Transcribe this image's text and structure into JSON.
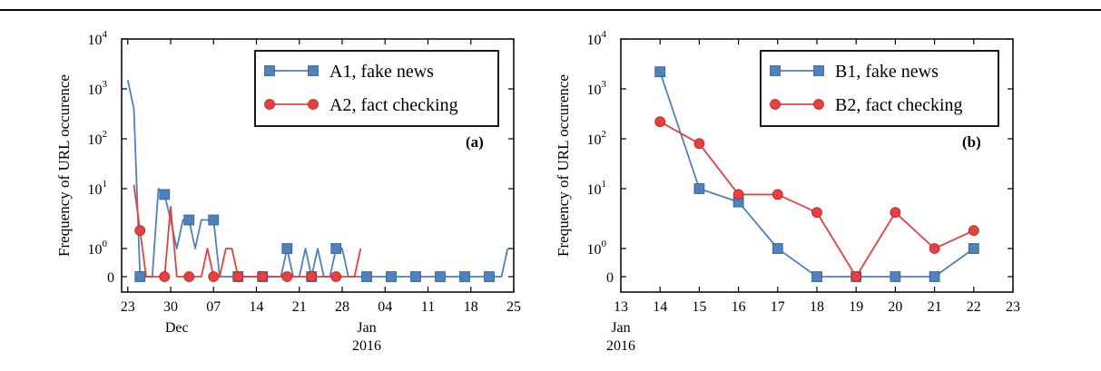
{
  "chart_data": [
    {
      "type": "line",
      "panel_label": "(a)",
      "ylabel": "Frequency of URL occurence",
      "y_scale": "symlog",
      "y_ticks": [
        {
          "value": 0,
          "label": "0",
          "sup": ""
        },
        {
          "value": 1,
          "label": "10",
          "sup": "0"
        },
        {
          "value": 10,
          "label": "10",
          "sup": "1"
        },
        {
          "value": 100,
          "label": "10",
          "sup": "2"
        },
        {
          "value": 1000,
          "label": "10",
          "sup": "3"
        },
        {
          "value": 10000,
          "label": "10",
          "sup": "4"
        }
      ],
      "xlim": [
        "2015-11-22",
        "2016-01-25"
      ],
      "x_ticks": [
        {
          "date": "2015-11-23",
          "label": "23"
        },
        {
          "date": "2015-11-30",
          "label": "30"
        },
        {
          "date": "2015-12-07",
          "label": "07"
        },
        {
          "date": "2015-12-14",
          "label": "14"
        },
        {
          "date": "2015-12-21",
          "label": "21"
        },
        {
          "date": "2015-12-28",
          "label": "28"
        },
        {
          "date": "2016-01-04",
          "label": "04"
        },
        {
          "date": "2016-01-11",
          "label": "11"
        },
        {
          "date": "2016-01-18",
          "label": "18"
        },
        {
          "date": "2016-01-25",
          "label": "25"
        }
      ],
      "x_sublabels": [
        {
          "date": "2015-12-01",
          "lines": [
            "Dec"
          ]
        },
        {
          "date": "2016-01-01",
          "lines": [
            "Jan",
            "2016"
          ]
        }
      ],
      "legend_position": "top-right",
      "series": [
        {
          "name": "A1, fake news",
          "color": "#4f81bd",
          "marker": "square",
          "x": [
            "2015-11-23",
            "2015-11-24",
            "2015-11-25",
            "2015-11-26",
            "2015-11-27",
            "2015-11-28",
            "2015-11-29",
            "2015-11-30",
            "2015-12-01",
            "2015-12-02",
            "2015-12-03",
            "2015-12-04",
            "2015-12-05",
            "2015-12-06",
            "2015-12-07",
            "2015-12-08",
            "2015-12-09",
            "2015-12-10",
            "2015-12-11",
            "2015-12-12",
            "2015-12-13",
            "2015-12-14",
            "2015-12-15",
            "2015-12-16",
            "2015-12-17",
            "2015-12-18",
            "2015-12-19",
            "2015-12-20",
            "2015-12-21",
            "2015-12-22",
            "2015-12-23",
            "2015-12-24",
            "2015-12-25",
            "2015-12-26",
            "2015-12-27",
            "2015-12-28",
            "2015-12-29",
            "2015-12-30",
            "2015-12-31",
            "2016-01-01",
            "2016-01-02",
            "2016-01-03",
            "2016-01-04",
            "2016-01-05",
            "2016-01-06",
            "2016-01-07",
            "2016-01-08",
            "2016-01-09",
            "2016-01-10",
            "2016-01-11",
            "2016-01-12",
            "2016-01-13",
            "2016-01-14",
            "2016-01-15",
            "2016-01-16",
            "2016-01-17",
            "2016-01-18",
            "2016-01-19",
            "2016-01-20",
            "2016-01-21",
            "2016-01-22",
            "2016-01-23",
            "2016-01-24"
          ],
          "values": [
            1500,
            400,
            0,
            0,
            0,
            10,
            8,
            3,
            1,
            3,
            3,
            1,
            3,
            3,
            3,
            0,
            0,
            0,
            0,
            0,
            0,
            0,
            0,
            0,
            0,
            0,
            1,
            0,
            0,
            1,
            0,
            1,
            0,
            0,
            1,
            1,
            0,
            0,
            0,
            0,
            0,
            0,
            0,
            0,
            0,
            0,
            0,
            0,
            0,
            0,
            0,
            0,
            0,
            0,
            0,
            0,
            0,
            0,
            0,
            0,
            0,
            0,
            1
          ],
          "marker_dates": [
            "2015-11-25",
            "2015-11-29",
            "2015-12-03",
            "2015-12-07",
            "2015-12-11",
            "2015-12-15",
            "2015-12-19",
            "2015-12-23",
            "2015-12-27",
            "2016-01-01",
            "2016-01-05",
            "2016-01-09",
            "2016-01-13",
            "2016-01-17",
            "2016-01-21"
          ]
        },
        {
          "name": "A2, fact checking",
          "color": "#e84040",
          "marker": "circle",
          "x": [
            "2015-11-24",
            "2015-11-25",
            "2015-11-26",
            "2015-11-27",
            "2015-11-28",
            "2015-11-29",
            "2015-11-30",
            "2015-12-01",
            "2015-12-02",
            "2015-12-03",
            "2015-12-04",
            "2015-12-05",
            "2015-12-06",
            "2015-12-07",
            "2015-12-08",
            "2015-12-09",
            "2015-12-10",
            "2015-12-11",
            "2015-12-12",
            "2015-12-13",
            "2015-12-14",
            "2015-12-15",
            "2015-12-16",
            "2015-12-17",
            "2015-12-18",
            "2015-12-19",
            "2015-12-20",
            "2015-12-21",
            "2015-12-22",
            "2015-12-23",
            "2015-12-24",
            "2015-12-25",
            "2015-12-26",
            "2015-12-27",
            "2015-12-28",
            "2015-12-29",
            "2015-12-30",
            "2015-12-31"
          ],
          "values": [
            12,
            2,
            0,
            0,
            0,
            0,
            5,
            0,
            0,
            0,
            0,
            0,
            1,
            0,
            0,
            1,
            1,
            0,
            0,
            0,
            0,
            0,
            0,
            0,
            0,
            0,
            0,
            0,
            0,
            0,
            0,
            0,
            0,
            0,
            0,
            0,
            0,
            1
          ],
          "marker_dates": [
            "2015-11-25",
            "2015-11-29",
            "2015-12-03",
            "2015-12-07",
            "2015-12-11",
            "2015-12-15",
            "2015-12-19",
            "2015-12-23",
            "2015-12-27"
          ]
        }
      ]
    },
    {
      "type": "line",
      "panel_label": "(b)",
      "ylabel": "Frequency of URL occurence",
      "y_scale": "symlog",
      "y_ticks": [
        {
          "value": 0,
          "label": "0",
          "sup": ""
        },
        {
          "value": 1,
          "label": "10",
          "sup": "0"
        },
        {
          "value": 10,
          "label": "10",
          "sup": "1"
        },
        {
          "value": 100,
          "label": "10",
          "sup": "2"
        },
        {
          "value": 1000,
          "label": "10",
          "sup": "3"
        },
        {
          "value": 10000,
          "label": "10",
          "sup": "4"
        }
      ],
      "xlim": [
        "2016-01-13",
        "2016-01-23"
      ],
      "x_ticks": [
        {
          "date": "2016-01-13",
          "label": "13"
        },
        {
          "date": "2016-01-14",
          "label": "14"
        },
        {
          "date": "2016-01-15",
          "label": "15"
        },
        {
          "date": "2016-01-16",
          "label": "16"
        },
        {
          "date": "2016-01-17",
          "label": "17"
        },
        {
          "date": "2016-01-18",
          "label": "18"
        },
        {
          "date": "2016-01-19",
          "label": "19"
        },
        {
          "date": "2016-01-20",
          "label": "20"
        },
        {
          "date": "2016-01-21",
          "label": "21"
        },
        {
          "date": "2016-01-22",
          "label": "22"
        },
        {
          "date": "2016-01-23",
          "label": "23"
        }
      ],
      "x_sublabels": [
        {
          "date": "2016-01-13",
          "lines": [
            "Jan",
            "2016"
          ]
        }
      ],
      "legend_position": "top-right",
      "series": [
        {
          "name": "B1, fake news",
          "color": "#4f81bd",
          "marker": "square",
          "x": [
            "2016-01-14",
            "2016-01-15",
            "2016-01-16",
            "2016-01-17",
            "2016-01-18",
            "2016-01-19",
            "2016-01-20",
            "2016-01-21",
            "2016-01-22"
          ],
          "values": [
            2200,
            10,
            6,
            1,
            0,
            0,
            0,
            0,
            1
          ],
          "marker_dates": [
            "2016-01-14",
            "2016-01-15",
            "2016-01-16",
            "2016-01-17",
            "2016-01-18",
            "2016-01-19",
            "2016-01-20",
            "2016-01-21",
            "2016-01-22"
          ]
        },
        {
          "name": "B2, fact checking",
          "color": "#e84040",
          "marker": "circle",
          "x": [
            "2016-01-14",
            "2016-01-15",
            "2016-01-16",
            "2016-01-17",
            "2016-01-18",
            "2016-01-19",
            "2016-01-20",
            "2016-01-21",
            "2016-01-22"
          ],
          "values": [
            220,
            80,
            8,
            8,
            4,
            0,
            4,
            1,
            2
          ],
          "marker_dates": [
            "2016-01-14",
            "2016-01-15",
            "2016-01-16",
            "2016-01-17",
            "2016-01-18",
            "2016-01-19",
            "2016-01-20",
            "2016-01-21",
            "2016-01-22"
          ]
        }
      ]
    }
  ]
}
